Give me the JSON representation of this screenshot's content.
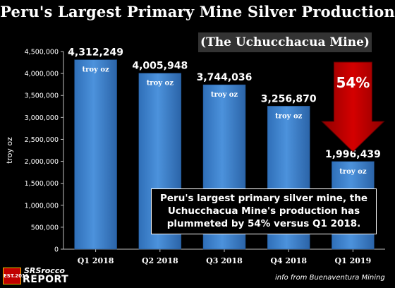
{
  "chart_data": {
    "type": "bar",
    "title": "Peru's Largest Primary Mine Silver Production",
    "subtitle": "(The Uchucchacua Mine)",
    "ylabel": "troy oz",
    "xlabel": "",
    "ylim": [
      0,
      4500000
    ],
    "yticks": [
      0,
      500000,
      1000000,
      1500000,
      2000000,
      2500000,
      3000000,
      3500000,
      4000000,
      4500000
    ],
    "ytick_labels": [
      "0",
      "500,000",
      "1,000,000",
      "1,500,000",
      "2,000,000",
      "2,500,000",
      "3,000,000",
      "3,500,000",
      "4,000,000",
      "4,500,000"
    ],
    "grid": false,
    "categories": [
      "Q1 2018",
      "Q2 2018",
      "Q3 2018",
      "Q4 2018",
      "Q1 2019"
    ],
    "values": [
      4312249,
      4005948,
      3744036,
      3256870,
      1996439
    ],
    "value_labels": [
      "4,312,249",
      "4,005,948",
      "3,744,036",
      "3,256,870",
      "1,996,439"
    ],
    "unit_label": "troy oz",
    "bar_color": "#3f82cc",
    "arrow": {
      "label": "54%",
      "color": "#c00000"
    },
    "annotation": [
      "Peru's largest primary silver mine, the",
      "Uchucchacua Mine's production has",
      "plummeted by 54% versus Q1 2018."
    ],
    "source": "info from Buenaventura Mining"
  },
  "logo": {
    "badge": "EST.2011",
    "top": "SRSrocco",
    "bottom": "REPORT"
  }
}
